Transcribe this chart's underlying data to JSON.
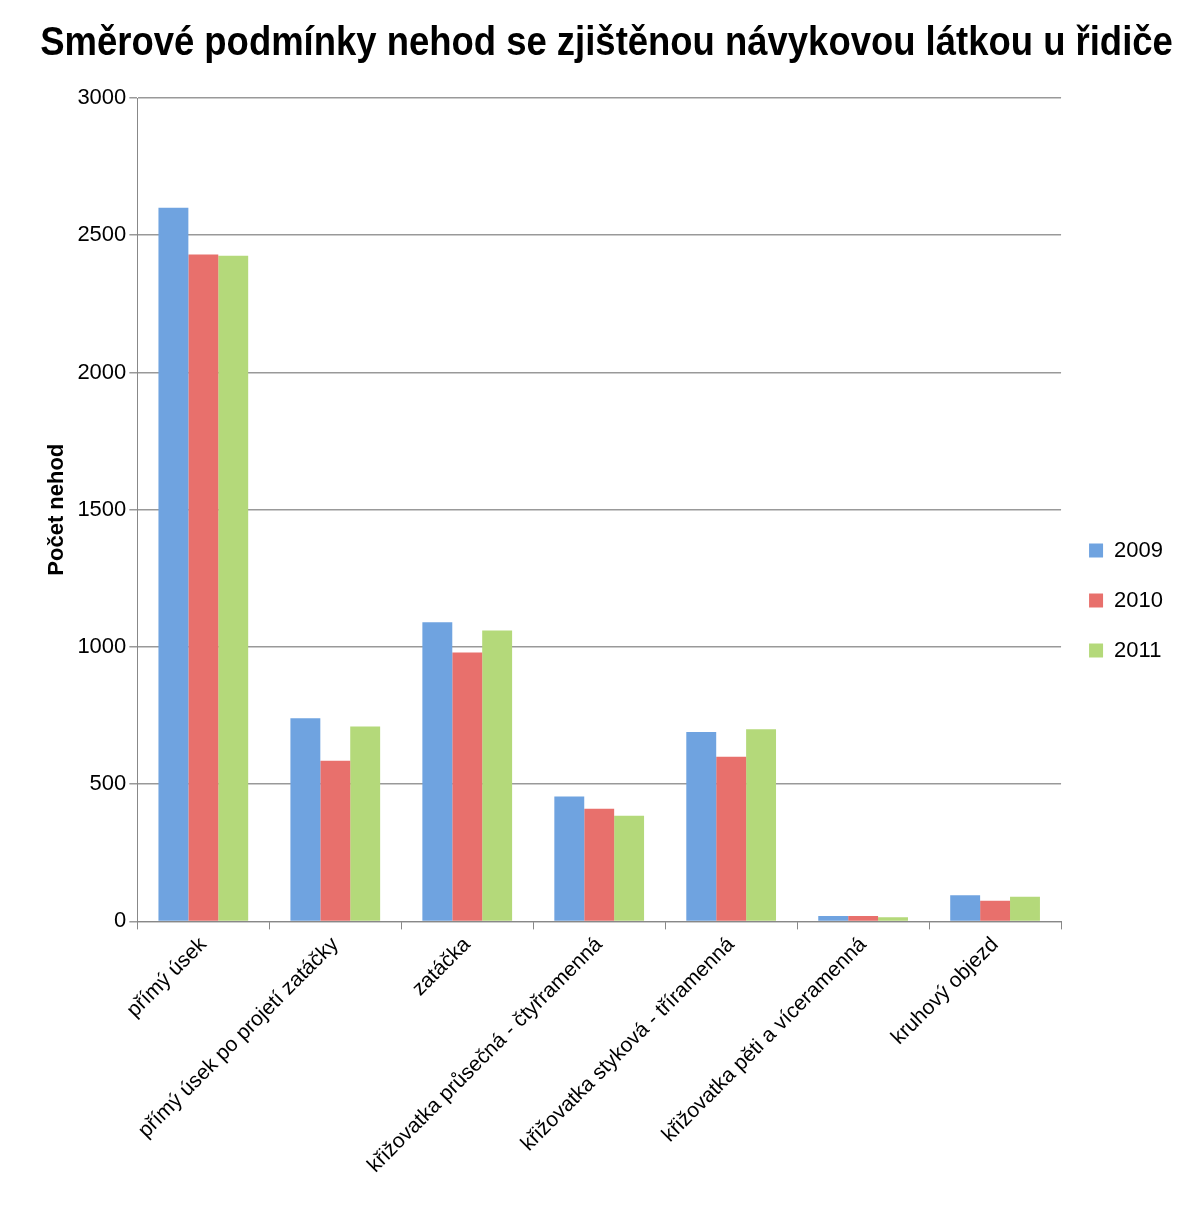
{
  "chart_data": {
    "type": "bar",
    "title": "Směrové podmínky nehod se zjištěnou návykovou látkou u řidiče",
    "ylabel": "Počet nehod",
    "categories": [
      "přímý úsek",
      "přímý úsek po projetí zatáčky",
      "zatáčka",
      "křižovatka průsečná - čtyřramenná",
      "křižovatka styková - tříramenná",
      "křižovatka pěti a víceramenná",
      "kruhový objezd"
    ],
    "series": [
      {
        "name": "2009",
        "color": "#6fa3e0",
        "values": [
          2600,
          740,
          1090,
          455,
          690,
          20,
          95
        ]
      },
      {
        "name": "2010",
        "color": "#e8706c",
        "values": [
          2430,
          585,
          980,
          410,
          600,
          20,
          75
        ]
      },
      {
        "name": "2011",
        "color": "#b4d97a",
        "values": [
          2425,
          710,
          1060,
          385,
          700,
          15,
          90
        ]
      }
    ],
    "ylim": [
      0,
      3000
    ],
    "yticks": [
      0,
      500,
      1000,
      1500,
      2000,
      2500,
      3000
    ],
    "grid": "y",
    "legend": "right"
  }
}
